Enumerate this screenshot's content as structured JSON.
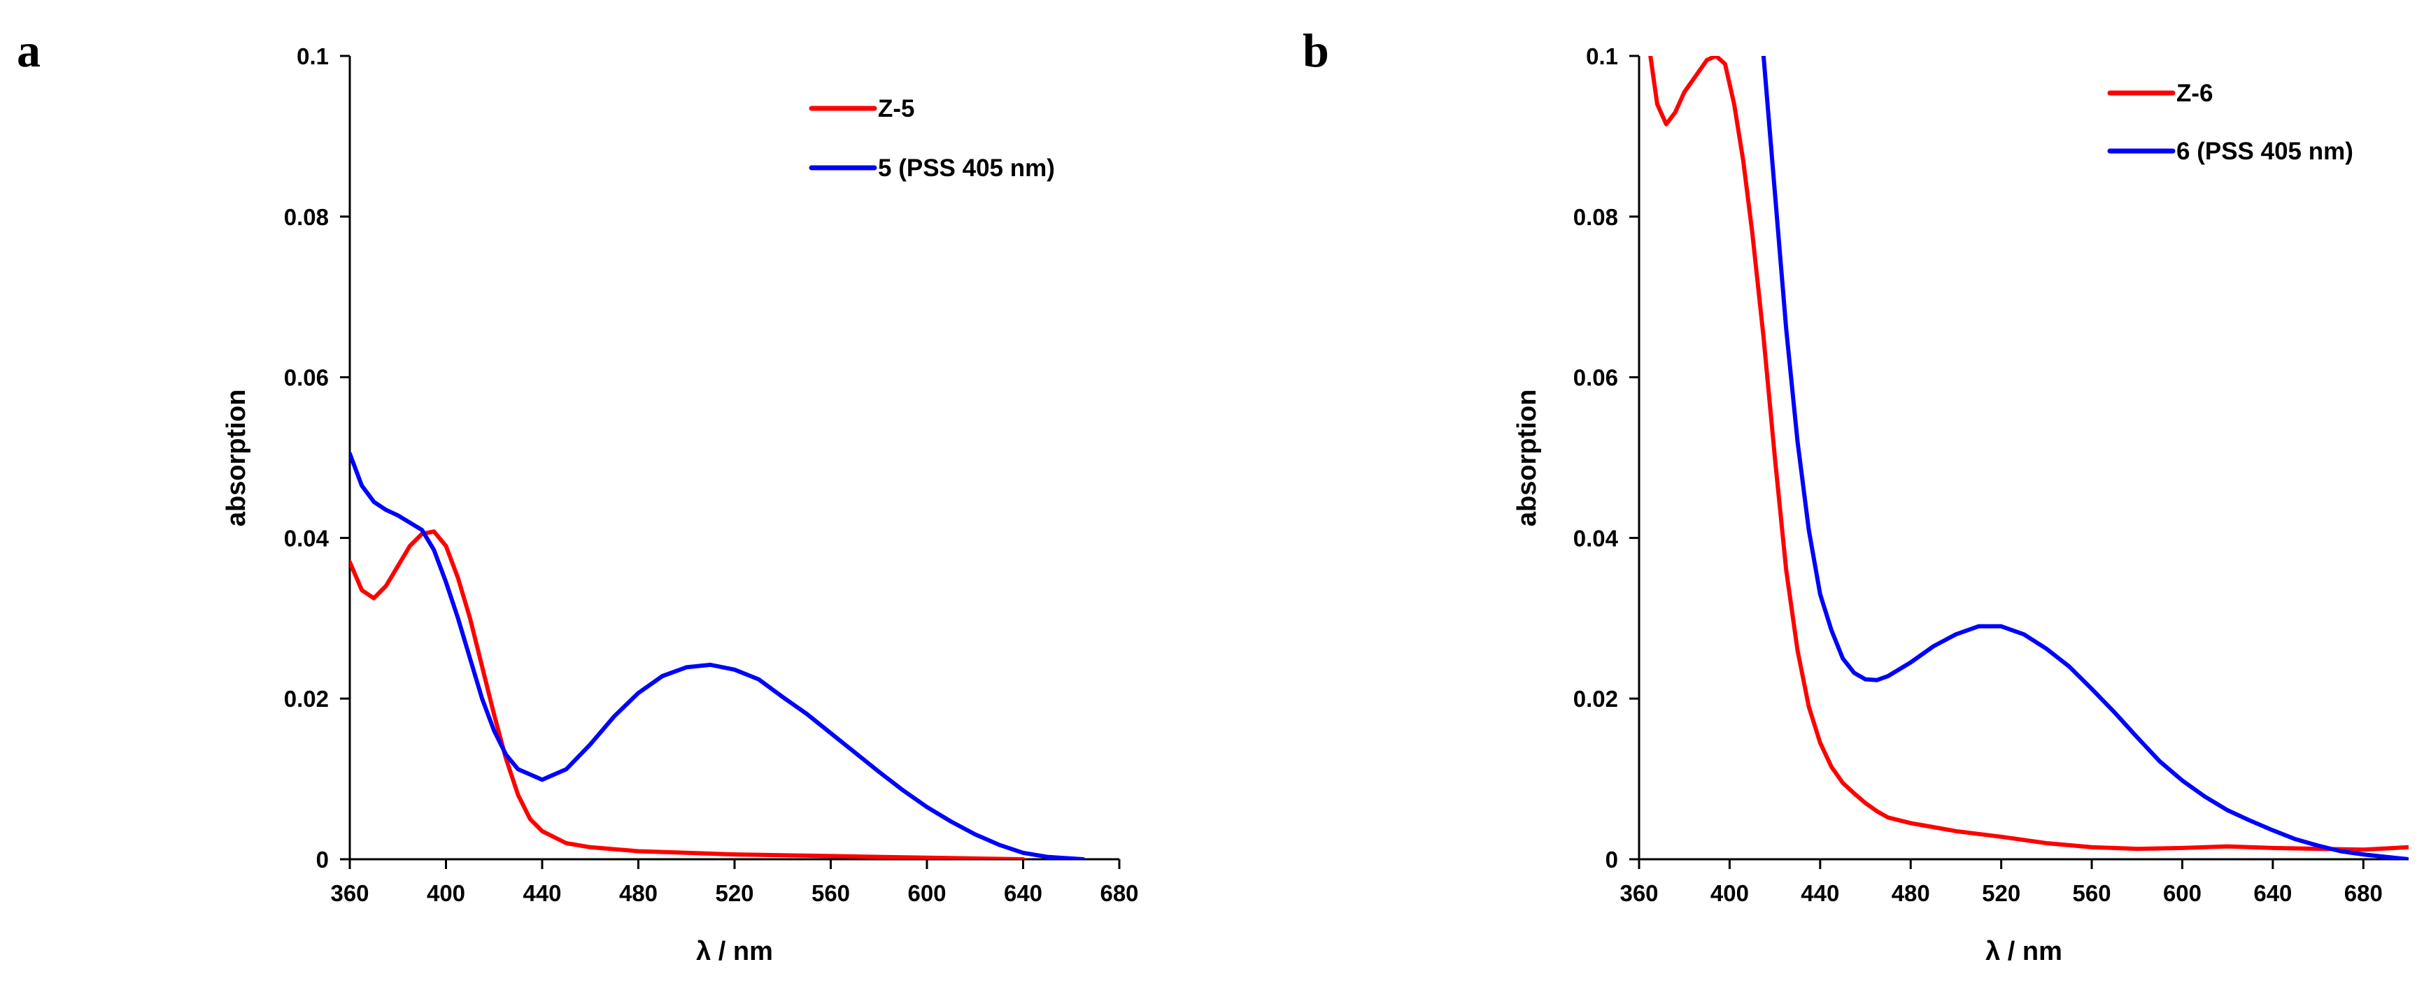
{
  "chart_data": [
    {
      "panel_label": "a",
      "type": "line",
      "xlabel": "λ / nm",
      "ylabel": "absorption",
      "xlim": [
        360,
        680
      ],
      "ylim": [
        0,
        0.1
      ],
      "xticks": [
        360,
        400,
        440,
        480,
        520,
        560,
        600,
        640,
        680
      ],
      "yticks": [
        0,
        0.02,
        0.04,
        0.06,
        0.08,
        0.1
      ],
      "ytick_labels": [
        "0",
        "0.02",
        "0.04",
        "0.06",
        "0.08",
        "0.1"
      ],
      "grid": false,
      "legend_position": "top-right",
      "series": [
        {
          "name": "Z-5",
          "color": "#ff0000",
          "x": [
            360,
            365,
            370,
            375,
            380,
            385,
            390,
            395,
            400,
            405,
            410,
            415,
            420,
            425,
            430,
            435,
            440,
            450,
            460,
            480,
            500,
            520,
            540,
            560,
            580,
            600,
            620,
            640
          ],
          "y": [
            0.037,
            0.0335,
            0.0325,
            0.034,
            0.0365,
            0.039,
            0.0405,
            0.0408,
            0.039,
            0.035,
            0.03,
            0.024,
            0.018,
            0.0125,
            0.008,
            0.005,
            0.0035,
            0.002,
            0.0015,
            0.001,
            0.0008,
            0.0006,
            0.0005,
            0.0004,
            0.0003,
            0.0002,
            0.0001,
            0
          ]
        },
        {
          "name": "5 (PSS 405 nm)",
          "color": "#0000ff",
          "x": [
            360,
            365,
            370,
            375,
            380,
            390,
            395,
            400,
            405,
            410,
            415,
            420,
            425,
            430,
            440,
            450,
            460,
            470,
            480,
            490,
            500,
            510,
            520,
            530,
            540,
            550,
            560,
            570,
            580,
            590,
            600,
            610,
            620,
            630,
            640,
            650,
            660,
            665
          ],
          "y": [
            0.0505,
            0.0465,
            0.0445,
            0.0435,
            0.0428,
            0.041,
            0.0385,
            0.0345,
            0.03,
            0.025,
            0.02,
            0.016,
            0.013,
            0.0112,
            0.0099,
            0.0112,
            0.0143,
            0.0178,
            0.0207,
            0.0228,
            0.0239,
            0.0242,
            0.0236,
            0.0224,
            0.0202,
            0.0181,
            0.0157,
            0.0133,
            0.0109,
            0.0086,
            0.0065,
            0.0047,
            0.0031,
            0.0018,
            0.0008,
            0.0003,
            0.0001,
            0
          ]
        }
      ]
    },
    {
      "panel_label": "b",
      "type": "line",
      "xlabel": "λ / nm",
      "ylabel": "absorption",
      "xlim": [
        360,
        700
      ],
      "ylim": [
        0,
        0.1
      ],
      "xticks": [
        360,
        400,
        440,
        480,
        520,
        560,
        600,
        640,
        680
      ],
      "yticks": [
        0,
        0.02,
        0.04,
        0.06,
        0.08,
        0.1
      ],
      "ytick_labels": [
        "0",
        "0.02",
        "0.04",
        "0.06",
        "0.08",
        "0.1"
      ],
      "grid": false,
      "legend_position": "top-right",
      "series": [
        {
          "name": "Z-6",
          "color": "#ff0000",
          "x": [
            365,
            368,
            372,
            376,
            380,
            385,
            390,
            394,
            398,
            402,
            406,
            410,
            415,
            420,
            425,
            430,
            435,
            440,
            445,
            450,
            455,
            460,
            465,
            470,
            480,
            490,
            500,
            520,
            540,
            560,
            580,
            600,
            620,
            640,
            660,
            680,
            700
          ],
          "y": [
            0.1,
            0.094,
            0.0915,
            0.093,
            0.0955,
            0.0975,
            0.0995,
            0.1,
            0.099,
            0.094,
            0.087,
            0.078,
            0.065,
            0.05,
            0.036,
            0.026,
            0.019,
            0.0145,
            0.0115,
            0.0095,
            0.0082,
            0.007,
            0.006,
            0.0052,
            0.0045,
            0.004,
            0.0035,
            0.0028,
            0.002,
            0.0015,
            0.0013,
            0.0014,
            0.0016,
            0.0014,
            0.0013,
            0.0012,
            0.0015
          ]
        },
        {
          "name": "6 (PSS 405 nm)",
          "color": "#0000ff",
          "x": [
            415,
            420,
            425,
            430,
            435,
            440,
            445,
            450,
            455,
            460,
            465,
            470,
            480,
            490,
            500,
            510,
            520,
            530,
            540,
            550,
            560,
            570,
            580,
            590,
            600,
            610,
            620,
            630,
            640,
            650,
            660,
            670,
            680,
            690,
            700
          ],
          "y": [
            0.1,
            0.083,
            0.066,
            0.052,
            0.041,
            0.033,
            0.0285,
            0.025,
            0.0232,
            0.0224,
            0.0223,
            0.0228,
            0.0245,
            0.0265,
            0.028,
            0.029,
            0.029,
            0.028,
            0.0262,
            0.024,
            0.0212,
            0.0183,
            0.0152,
            0.0122,
            0.0098,
            0.0078,
            0.0061,
            0.0048,
            0.0036,
            0.0025,
            0.0017,
            0.001,
            0.0006,
            0.0003,
            0
          ]
        }
      ]
    }
  ]
}
